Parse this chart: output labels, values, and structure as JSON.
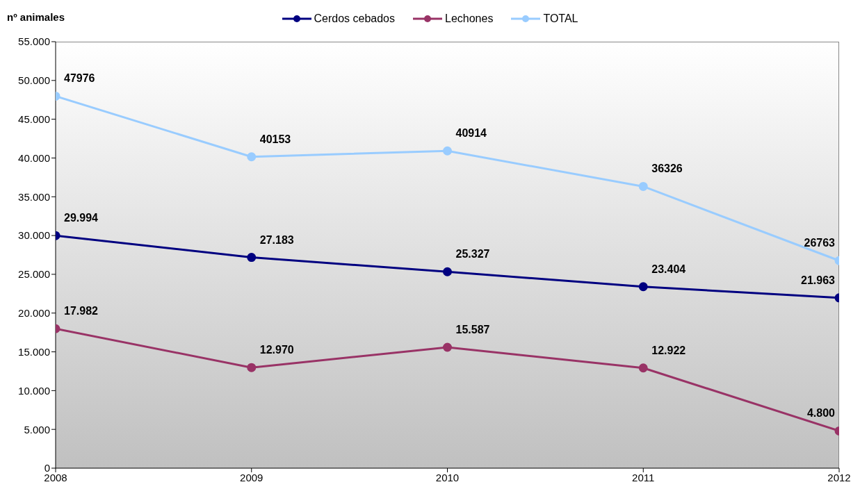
{
  "chart_data": {
    "type": "line",
    "ylabel": "nº animales",
    "x": [
      2008,
      2009,
      2010,
      2011,
      2012
    ],
    "xlim": [
      2008,
      2012
    ],
    "xticks": [
      2008,
      2009,
      2010,
      2011,
      2012
    ],
    "ylim": [
      0,
      55000
    ],
    "yticks": [
      {
        "value": 0,
        "label": "0"
      },
      {
        "value": 5000,
        "label": "5.000"
      },
      {
        "value": 10000,
        "label": "10.000"
      },
      {
        "value": 15000,
        "label": "15.000"
      },
      {
        "value": 20000,
        "label": "20.000"
      },
      {
        "value": 25000,
        "label": "25.000"
      },
      {
        "value": 30000,
        "label": "30.000"
      },
      {
        "value": 35000,
        "label": "35.000"
      },
      {
        "value": 40000,
        "label": "40.000"
      },
      {
        "value": 45000,
        "label": "45.000"
      },
      {
        "value": 50000,
        "label": "50.000"
      },
      {
        "value": 55000,
        "label": "55.000"
      }
    ],
    "legend": "top",
    "marker": "circle",
    "series": [
      {
        "name": "Cerdos cebados",
        "color": "#000080",
        "values": [
          29994,
          27183,
          25327,
          23404,
          21963
        ],
        "value_labels": [
          "29.994",
          "27.183",
          "25.327",
          "23.404",
          "21.963"
        ]
      },
      {
        "name": "Lechones",
        "color": "#993366",
        "values": [
          17982,
          12970,
          15587,
          12922,
          4800
        ],
        "value_labels": [
          "17.982",
          "12.970",
          "15.587",
          "12.922",
          "4.800"
        ]
      },
      {
        "name": "TOTAL",
        "color": "#99ccff",
        "values": [
          47976,
          40153,
          40914,
          36326,
          26763
        ],
        "value_labels": [
          "47976",
          "40153",
          "40914",
          "36326",
          "26763"
        ]
      }
    ]
  }
}
